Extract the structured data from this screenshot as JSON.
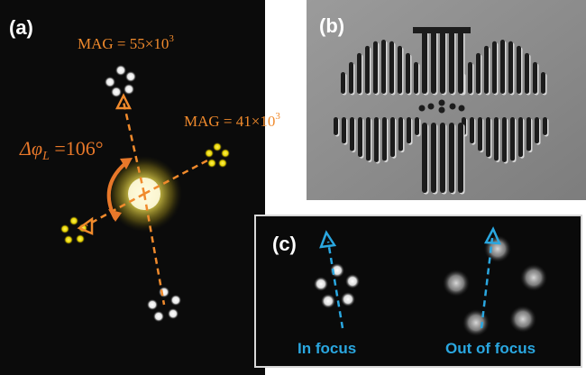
{
  "figure": {
    "panel_a": {
      "label": "(a)",
      "mag_top": "MAG = 55×10",
      "mag_top_exp": "3",
      "mag_right": "MAG = 41×10",
      "mag_right_exp": "3",
      "angle_prefix": "Δφ",
      "angle_sub": "L",
      "angle_value": " =106°"
    },
    "panel_b": {
      "label": "(b)"
    },
    "panel_c": {
      "label": "(c)",
      "left_caption": "In focus",
      "right_caption": "Out of focus"
    },
    "colors": {
      "orange": "#f08a2c",
      "blue": "#2aa7e0",
      "yellow_spots": "#f2e100",
      "white_spots": "#ffffff"
    }
  }
}
